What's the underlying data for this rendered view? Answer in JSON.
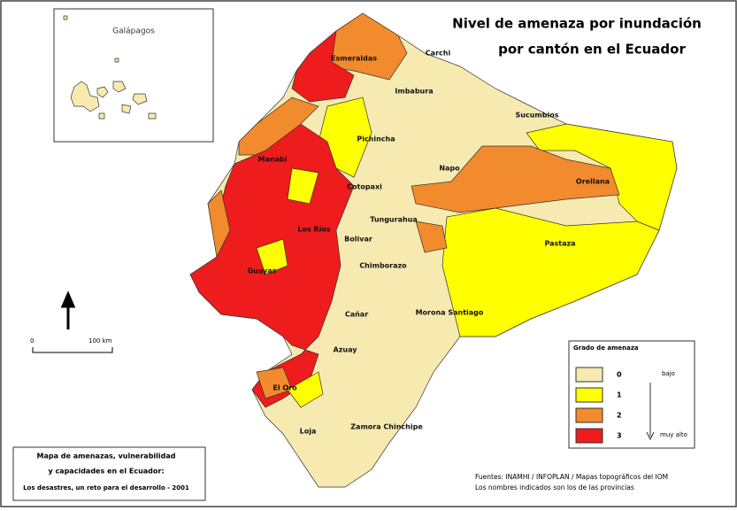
{
  "title": [
    "Nivel de amenaza por inundación",
    "por cantón en el Ecuador"
  ],
  "inset": {
    "label": "Galápagos"
  },
  "provinces": [
    "Esmeraldas",
    "Carchi",
    "Imbabura",
    "Sucumbios",
    "Pichincha",
    "Manabi",
    "Napo",
    "Orellana",
    "Cotopaxi",
    "Tungurahua",
    "Los Ríos",
    "Bolivar",
    "Pastaza",
    "Guayas",
    "Chimborazo",
    "Morona Santiago",
    "Cañar",
    "Azuay",
    "El Oro",
    "Zamora Chinchipe",
    "Loja"
  ],
  "scale": {
    "start": "0",
    "end": "100 km"
  },
  "legend": {
    "title": "Grado de amenaza",
    "items": [
      {
        "value": 0,
        "color": "#f7eab0"
      },
      {
        "value": 1,
        "color": "#ffff00"
      },
      {
        "value": 2,
        "color": "#f28a2e"
      },
      {
        "value": 3,
        "color": "#ee1c1c"
      }
    ],
    "low": "bajo",
    "high": "muy alto"
  },
  "credit": [
    "Mapa de amenazas, vulnerabilidad",
    "y capacidades en el Ecuador:",
    "Los desastres, un reto para el desarrollo - 2001"
  ],
  "sources": [
    "Fuentes: INAMHI / INFOPLAN / Mapas topográficos del IOM",
    "Los nombres indicados son los de las provincias"
  ]
}
